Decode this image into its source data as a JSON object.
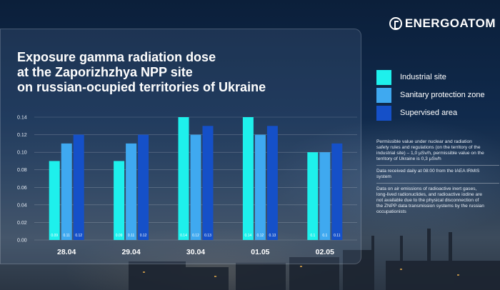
{
  "brand": {
    "name": "ENERGOATOM"
  },
  "title": {
    "line1": "Exposure gamma radiation dose",
    "line2": "at the Zaporizhzhya NPP site",
    "line3": "on russian-ocupied territories of Ukraine"
  },
  "colors": {
    "industrial": "#1ef0ec",
    "sanitary": "#3fa9f0",
    "supervised": "#1550c8",
    "background": "#102a4c"
  },
  "legend": {
    "items": [
      {
        "label": "Industrial site",
        "color": "#1ef0ec"
      },
      {
        "label": "Sanitary protection zone",
        "color": "#3fa9f0"
      },
      {
        "label": "Supervised area",
        "color": "#1550c8"
      }
    ]
  },
  "notes": [
    "Permissible value under nuclear and radiation\nsafety rules and regulations (on the territory of the\nindustrial site) – 1,0 µSv/h, permissible value on the\nterritory of Ukraine is 0,3 µSv/h",
    "Data received daily at 08:00 from the IAEA IRMIS\nsystem",
    "Data on air emissions of radioactive inert gases,\nlong-lived radionuclides, and radioactive iodine are\nnot available due to the physical disconnection of\nthe ZNPP data transmission systems by the russian\noccupationists"
  ],
  "chart_data": {
    "type": "bar",
    "title": "Exposure gamma radiation dose at the Zaporizhzhya NPP site on russian-ocupied territories of Ukraine",
    "xlabel": "",
    "ylabel": "",
    "categories": [
      "28.04",
      "29.04",
      "30.04",
      "01.05",
      "02.05"
    ],
    "ylim": [
      0,
      0.14
    ],
    "yticks": [
      "0.00",
      "0.02",
      "0.04",
      "0.06",
      "0.08",
      "0.10",
      "0.12",
      "0.14"
    ],
    "grid": true,
    "legend_position": "right",
    "series": [
      {
        "name": "Industrial site",
        "color": "#1ef0ec",
        "values": [
          0.09,
          0.09,
          0.14,
          0.14,
          0.1
        ],
        "labels": [
          "0.09",
          "0.09",
          "0.14",
          "0.14",
          "0.1"
        ]
      },
      {
        "name": "Sanitary protection zone",
        "color": "#3fa9f0",
        "values": [
          0.11,
          0.11,
          0.12,
          0.12,
          0.1
        ],
        "labels": [
          "0.11",
          "0.11",
          "0.12",
          "0.12",
          "0.1"
        ]
      },
      {
        "name": "Supervised area",
        "color": "#1550c8",
        "values": [
          0.12,
          0.12,
          0.13,
          0.13,
          0.11
        ],
        "labels": [
          "0.12",
          "0.12",
          "0.13",
          "0.13",
          "0.11"
        ]
      }
    ]
  }
}
